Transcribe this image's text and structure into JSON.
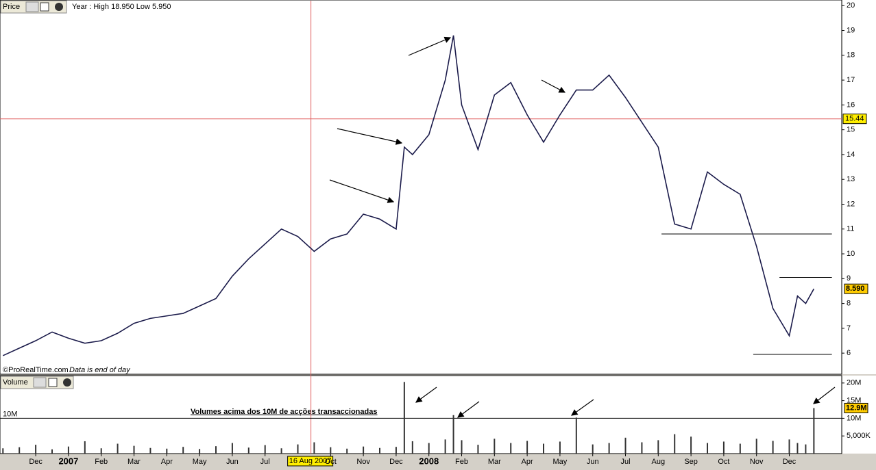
{
  "chart_data": [
    {
      "type": "line",
      "title": "Price",
      "subtitle": "Year : High 18.950 Low 5.950",
      "credit": "©ProRealTime.com",
      "note": "Data is end of day",
      "color": "#1a1a4a",
      "x": [
        -1.0,
        -0.5,
        0,
        0.5,
        1,
        1.5,
        2,
        2.5,
        3,
        3.5,
        4,
        4.5,
        5,
        5.5,
        6,
        6.5,
        7,
        7.5,
        8,
        8.5,
        9,
        9.5,
        10,
        10.5,
        11,
        11.25,
        11.5,
        12,
        12.5,
        12.75,
        13,
        13.5,
        14,
        14.5,
        15,
        15.5,
        16,
        16.5,
        17,
        17.5,
        18,
        18.5,
        19,
        19.5,
        20,
        20.5,
        21,
        21.5,
        22,
        22.5,
        23,
        23.25,
        23.5,
        23.75
      ],
      "values": [
        5.9,
        6.2,
        6.5,
        6.85,
        6.6,
        6.4,
        6.5,
        6.8,
        7.2,
        7.4,
        7.5,
        7.6,
        7.9,
        8.2,
        9.1,
        9.8,
        10.4,
        11.0,
        10.7,
        10.1,
        10.6,
        10.8,
        11.6,
        11.4,
        11.0,
        14.3,
        14.0,
        14.8,
        17.0,
        18.8,
        16.0,
        14.2,
        16.4,
        16.9,
        15.6,
        14.5,
        15.6,
        16.6,
        16.6,
        17.2,
        16.3,
        15.3,
        14.3,
        11.2,
        11.0,
        13.3,
        12.8,
        12.4,
        10.3,
        7.8,
        6.7,
        8.3,
        8.0,
        8.59
      ],
      "xlim": [
        -1.09,
        24.6
      ],
      "ylim": [
        5.15,
        20.2
      ],
      "yticks": [
        6,
        7,
        8,
        9,
        10,
        11,
        12,
        13,
        14,
        15,
        16,
        17,
        18,
        19,
        20
      ],
      "cursor": {
        "x": 8.4,
        "x_label": "16 Aug 2007",
        "y": 15.44
      },
      "last": {
        "value": 8.59,
        "label": "8.590"
      },
      "support_lines": [
        {
          "value": 10.8,
          "x": [
            19.1,
            24.3
          ]
        },
        {
          "value": 9.05,
          "x": [
            22.7,
            24.3
          ]
        },
        {
          "value": 5.95,
          "x": [
            21.9,
            24.3
          ]
        }
      ]
    },
    {
      "type": "bar",
      "title": "Volume",
      "annotation": "Volumes acima dos 10M de acções transaccionadas",
      "color": "#333333",
      "x": [
        -1.0,
        -0.5,
        0,
        0.5,
        1,
        1.5,
        2,
        2.5,
        3,
        3.5,
        4,
        4.5,
        5,
        5.5,
        6,
        6.5,
        7,
        7.5,
        8,
        8.5,
        9,
        9.5,
        10,
        10.5,
        11,
        11.25,
        11.5,
        12,
        12.5,
        12.75,
        13,
        13.5,
        14,
        14.5,
        15,
        15.5,
        16,
        16.5,
        17,
        17.5,
        18,
        18.5,
        19,
        19.5,
        20,
        20.5,
        21,
        21.5,
        22,
        22.5,
        23,
        23.25,
        23.5,
        23.75
      ],
      "values": [
        1500000,
        1800000,
        2500000,
        1200000,
        2000000,
        3500000,
        1500000,
        2800000,
        2200000,
        1600000,
        1400000,
        1900000,
        1300000,
        2100000,
        3000000,
        1700000,
        2400000,
        1500000,
        2600000,
        3200000,
        1800000,
        1400000,
        2000000,
        1600000,
        1900000,
        20300000,
        3500000,
        3000000,
        4000000,
        10900000,
        3800000,
        2500000,
        4200000,
        3000000,
        3600000,
        2800000,
        3400000,
        10200000,
        2600000,
        3000000,
        4500000,
        3200000,
        3800000,
        5500000,
        4800000,
        3000000,
        3400000,
        2800000,
        4200000,
        3600000,
        4000000,
        3000000,
        2600000,
        12900000
      ],
      "xlim": [
        -1.09,
        24.6
      ],
      "ylim": [
        0,
        22100000
      ],
      "yticks": [
        {
          "value": 5000000,
          "label": "5,000K"
        },
        {
          "value": 10000000,
          "label": "10M"
        },
        {
          "value": 15000000,
          "label": "15M"
        },
        {
          "value": 20000000,
          "label": "20M"
        }
      ],
      "threshold": {
        "value": 10000000,
        "label": "10M"
      },
      "last": {
        "value": 12900000,
        "label": "12.9M"
      },
      "xticks": [
        {
          "value": 0,
          "label": "Dec"
        },
        {
          "value": 1,
          "label": "2007"
        },
        {
          "value": 2,
          "label": "Feb"
        },
        {
          "value": 3,
          "label": "Mar"
        },
        {
          "value": 4,
          "label": "Apr"
        },
        {
          "value": 5,
          "label": "May"
        },
        {
          "value": 6,
          "label": "Jun"
        },
        {
          "value": 7,
          "label": "Jul"
        },
        {
          "value": 9,
          "label": "Oct"
        },
        {
          "value": 10,
          "label": "Nov"
        },
        {
          "value": 11,
          "label": "Dec"
        },
        {
          "value": 12,
          "label": "2008"
        },
        {
          "value": 13,
          "label": "Feb"
        },
        {
          "value": 14,
          "label": "Mar"
        },
        {
          "value": 15,
          "label": "Apr"
        },
        {
          "value": 16,
          "label": "May"
        },
        {
          "value": 17,
          "label": "Jun"
        },
        {
          "value": 18,
          "label": "Jul"
        },
        {
          "value": 19,
          "label": "Aug"
        },
        {
          "value": 20,
          "label": "Sep"
        },
        {
          "value": 21,
          "label": "Oct"
        },
        {
          "value": 22,
          "label": "Nov"
        },
        {
          "value": 23,
          "label": "Dec"
        }
      ]
    }
  ]
}
